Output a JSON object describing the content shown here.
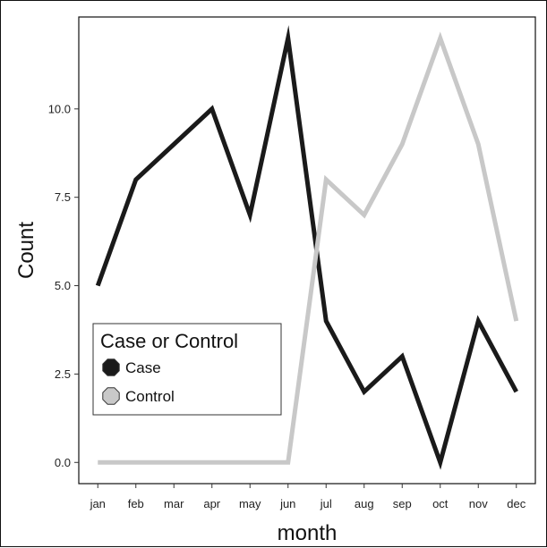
{
  "chart_data": {
    "type": "line",
    "categories": [
      "jan",
      "feb",
      "mar",
      "apr",
      "may",
      "jun",
      "jul",
      "aug",
      "sep",
      "oct",
      "nov",
      "dec"
    ],
    "series": [
      {
        "name": "Case",
        "color": "#1a1a1a",
        "values": [
          5,
          8,
          9,
          10,
          7,
          12,
          4,
          2,
          3,
          0,
          4,
          2
        ]
      },
      {
        "name": "Control",
        "color": "#c8c8c8",
        "values": [
          0,
          0,
          0,
          0,
          0,
          0,
          8,
          7,
          9,
          12,
          9,
          4
        ]
      }
    ],
    "xlabel": "month",
    "ylabel": "Count",
    "ylim": [
      -0.6,
      12.6
    ],
    "yticks": [
      0,
      2.5,
      5,
      7.5,
      10
    ],
    "ytick_labels": [
      "0.0",
      "2.5",
      "5.0",
      "7.5",
      "10.0"
    ],
    "grid": false,
    "legend": {
      "title": "Case or Control",
      "placement": "middle-left"
    }
  }
}
